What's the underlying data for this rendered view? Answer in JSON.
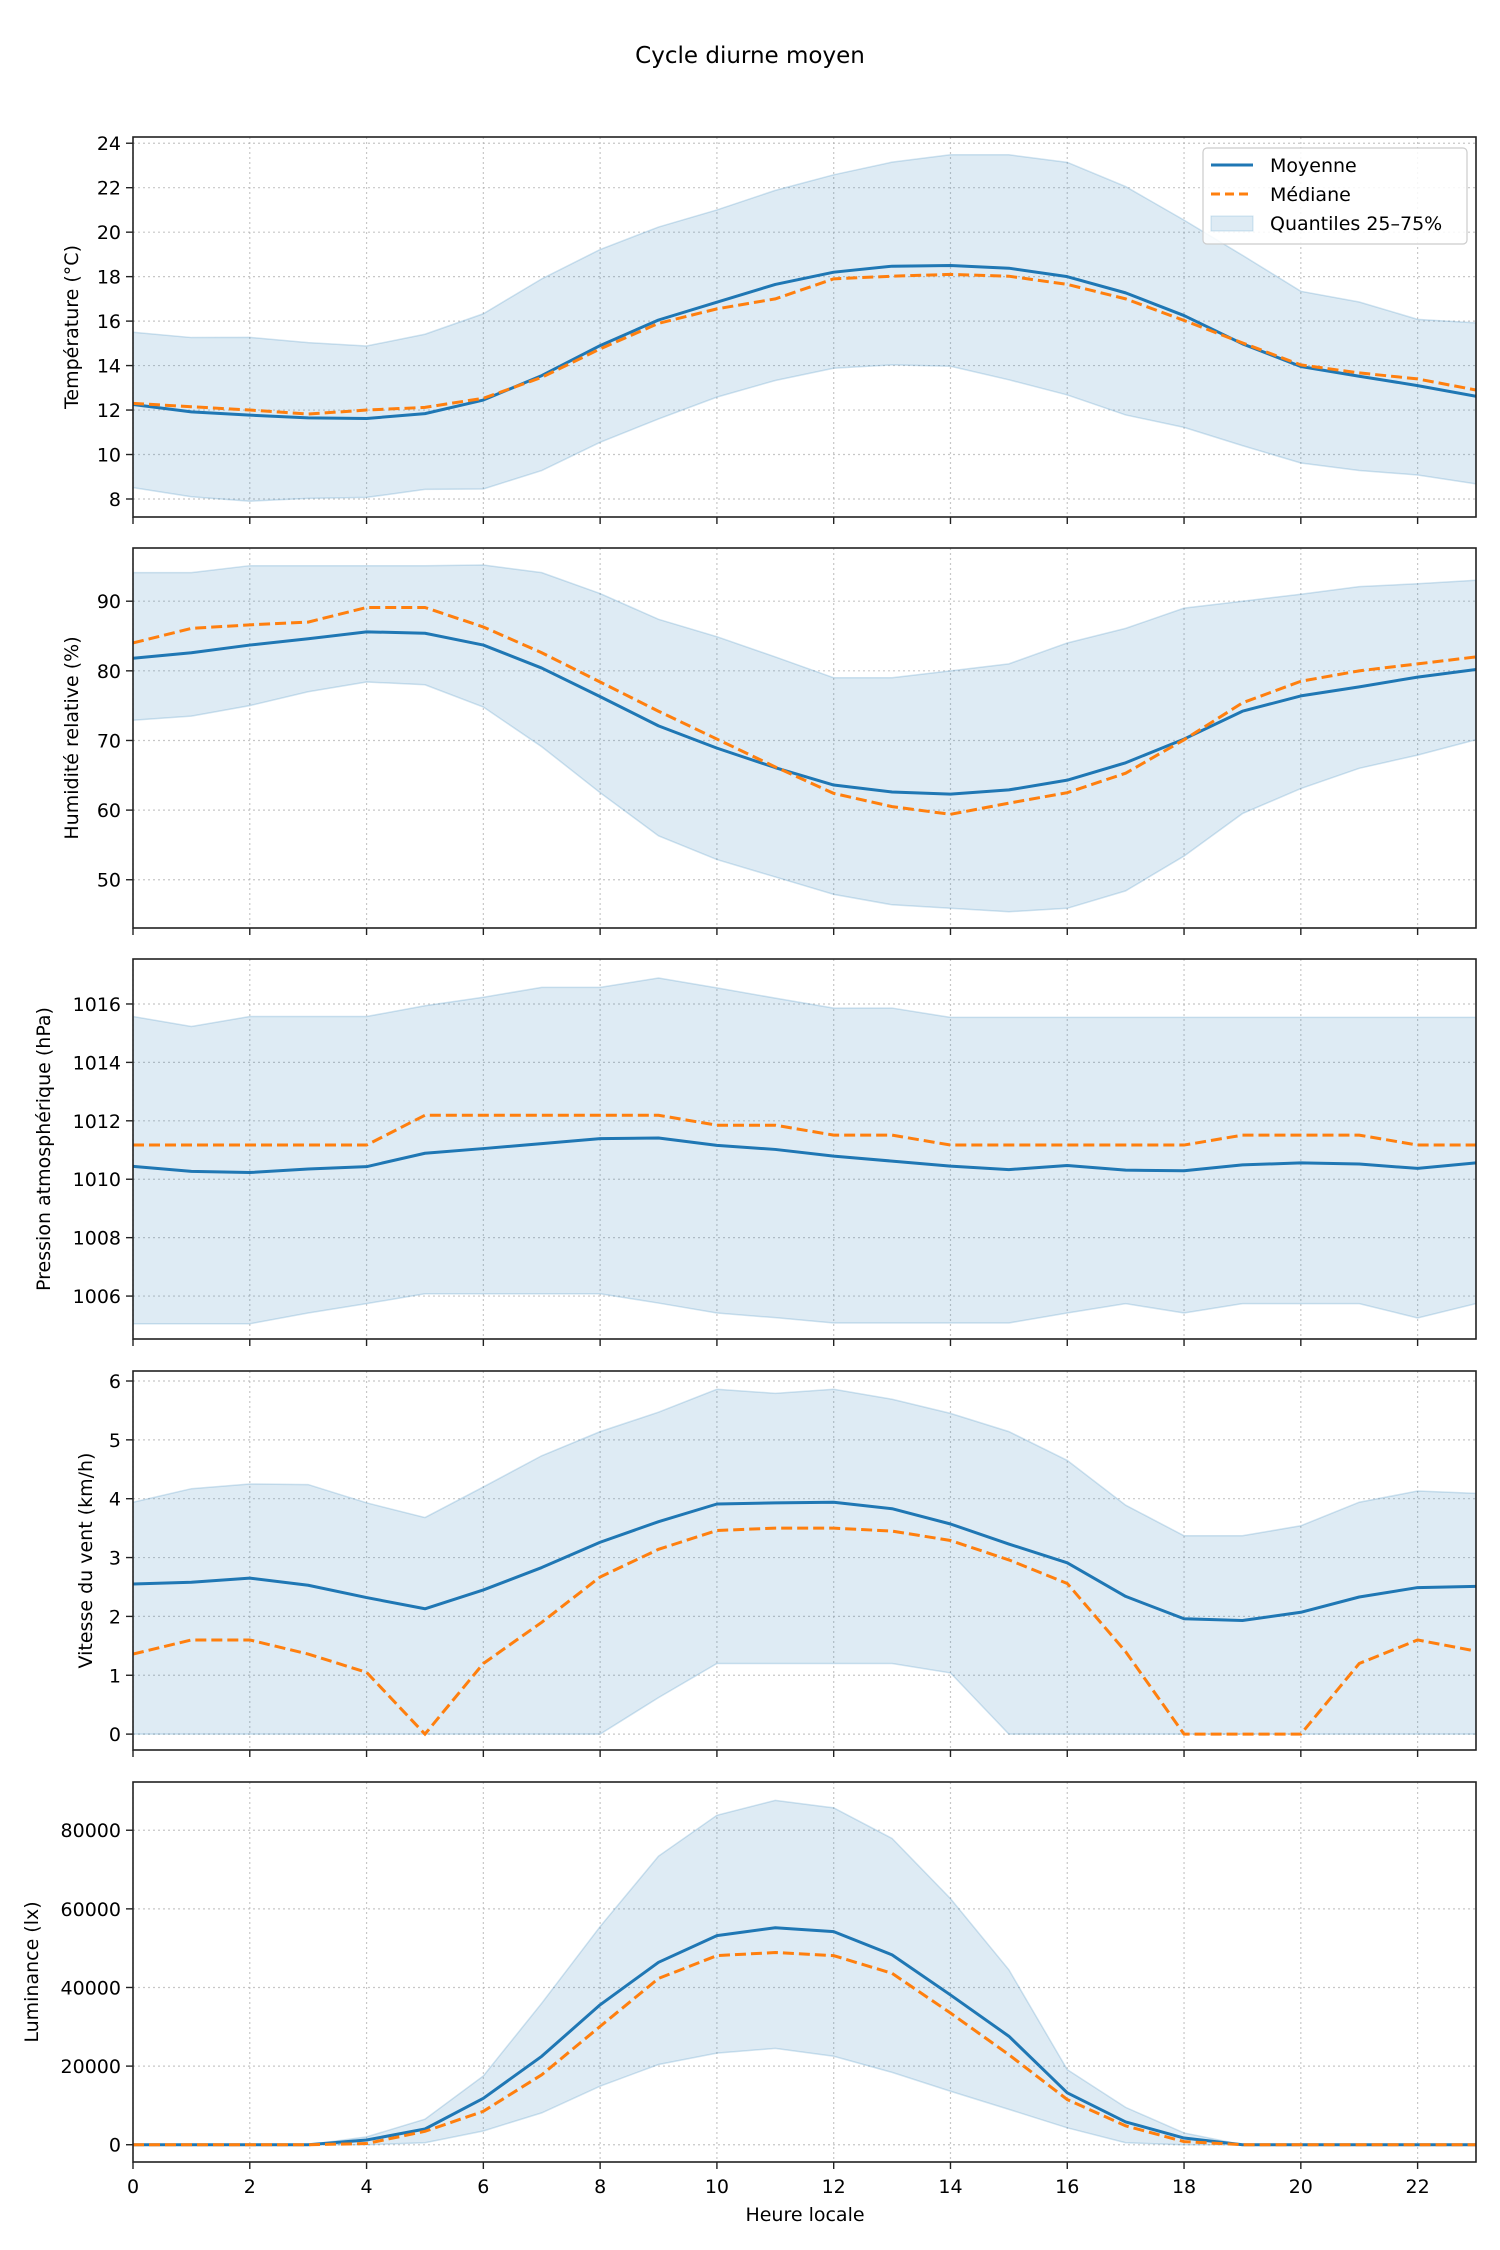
{
  "chart_data": {
    "type": "line",
    "title": "Cycle diurne moyen",
    "xlabel": "Heure locale",
    "x": [
      0,
      1,
      2,
      3,
      4,
      5,
      6,
      7,
      8,
      9,
      10,
      11,
      12,
      13,
      14,
      15,
      16,
      17,
      18,
      19,
      20,
      21,
      22,
      23
    ],
    "xlim": [
      0,
      23
    ],
    "xticks": [
      0,
      2,
      4,
      6,
      8,
      10,
      12,
      14,
      16,
      18,
      20,
      22
    ],
    "xtick_labels": [
      "0",
      "2",
      "4",
      "6",
      "8",
      "10",
      "12",
      "14",
      "16",
      "18",
      "20",
      "22"
    ],
    "grid": true,
    "legend": {
      "placement": "top-right",
      "entries": [
        "Moyenne",
        "Médiane",
        "Quantiles 25–75%"
      ]
    },
    "colors": {
      "mean": "#1f77b4",
      "median": "#ff7f0e",
      "band": "#1f77b4"
    },
    "panels": [
      {
        "ylabel": "Température (°C)",
        "ylim": [
          7.19,
          24.28
        ],
        "yticks": [
          8,
          10,
          12,
          14,
          16,
          18,
          20,
          22,
          24
        ],
        "ytick_labels": [
          "8",
          "10",
          "12",
          "14",
          "16",
          "18",
          "20",
          "22",
          "24"
        ],
        "series": [
          {
            "name": "Moyenne",
            "values": [
              12.25,
              11.92,
              11.77,
              11.65,
              11.62,
              11.84,
              12.45,
              13.55,
              14.9,
              16.05,
              16.85,
              17.65,
              18.2,
              18.47,
              18.5,
              18.38,
              18.0,
              17.27,
              16.25,
              14.98,
              13.96,
              13.52,
              13.1,
              12.62
            ]
          },
          {
            "name": "Médiane",
            "values": [
              12.3,
              12.15,
              12.0,
              11.82,
              12.0,
              12.12,
              12.53,
              13.47,
              14.75,
              15.9,
              16.55,
              17.0,
              17.9,
              18.02,
              18.1,
              18.02,
              17.65,
              17.0,
              16.03,
              15.02,
              14.03,
              13.67,
              13.4,
              12.9
            ]
          },
          {
            "name": "Quantiles 25–75%",
            "q25": [
              8.51,
              8.1,
              7.9,
              8.03,
              8.07,
              8.43,
              8.45,
              9.28,
              10.55,
              11.6,
              12.58,
              13.33,
              13.88,
              14.03,
              13.97,
              13.36,
              12.68,
              11.78,
              11.22,
              10.4,
              9.62,
              9.28,
              9.08,
              8.68
            ],
            "q75": [
              15.5,
              15.26,
              15.27,
              15.03,
              14.88,
              15.41,
              16.33,
              17.9,
              19.22,
              20.23,
              21.0,
              21.88,
              22.58,
              23.15,
              23.48,
              23.48,
              23.14,
              22.05,
              20.54,
              18.96,
              17.34,
              16.86,
              16.08,
              15.92
            ]
          }
        ]
      },
      {
        "ylabel": "Humidité relative (%)",
        "ylim": [
          43.07,
          97.64
        ],
        "yticks": [
          50,
          60,
          70,
          80,
          90
        ],
        "ytick_labels": [
          "50",
          "60",
          "70",
          "80",
          "90"
        ],
        "series": [
          {
            "name": "Moyenne",
            "values": [
              81.8,
              82.6,
              83.7,
              84.6,
              85.6,
              85.4,
              83.7,
              80.4,
              76.3,
              72.1,
              68.9,
              66.1,
              63.6,
              62.6,
              62.3,
              62.9,
              64.3,
              66.8,
              70.2,
              74.2,
              76.4,
              77.7,
              79.1,
              80.2
            ]
          },
          {
            "name": "Médiane",
            "values": [
              84.0,
              86.1,
              86.6,
              87.0,
              89.1,
              89.1,
              86.3,
              82.6,
              78.4,
              74.2,
              70.2,
              66.2,
              62.4,
              60.5,
              59.4,
              61.0,
              62.5,
              65.3,
              70.1,
              75.4,
              78.5,
              80.0,
              81.0,
              82.0
            ]
          },
          {
            "name": "Quantiles 25–75%",
            "q25": [
              72.9,
              73.5,
              75.0,
              77.0,
              78.4,
              78.0,
              74.8,
              69.1,
              62.5,
              56.3,
              52.9,
              50.4,
              47.9,
              46.4,
              45.9,
              45.4,
              45.9,
              48.4,
              53.4,
              59.5,
              63.1,
              66.0,
              67.9,
              70.1
            ],
            "q75": [
              94.1,
              94.1,
              95.1,
              95.1,
              95.1,
              95.1,
              95.2,
              94.1,
              91.1,
              87.4,
              84.9,
              82.0,
              79.0,
              79.0,
              80.0,
              81.0,
              84.0,
              86.1,
              89.0,
              90.0,
              91.0,
              92.1,
              92.5,
              93.0
            ]
          }
        ]
      },
      {
        "ylabel": "Pression atmosphérique (hPa)",
        "ylim": [
          1004.53,
          1017.54
        ],
        "yticks": [
          1006,
          1008,
          1010,
          1012,
          1014,
          1016
        ],
        "ytick_labels": [
          "1006",
          "1008",
          "1010",
          "1012",
          "1014",
          "1016"
        ],
        "series": [
          {
            "name": "Moyenne",
            "values": [
              1010.44,
              1010.27,
              1010.23,
              1010.35,
              1010.43,
              1010.89,
              1011.05,
              1011.22,
              1011.39,
              1011.41,
              1011.16,
              1011.02,
              1010.79,
              1010.62,
              1010.45,
              1010.33,
              1010.47,
              1010.31,
              1010.29,
              1010.49,
              1010.56,
              1010.52,
              1010.37,
              1010.56
            ]
          },
          {
            "name": "Médiane",
            "values": [
              1011.17,
              1011.17,
              1011.17,
              1011.17,
              1011.17,
              1012.19,
              1012.19,
              1012.19,
              1012.19,
              1012.19,
              1011.85,
              1011.85,
              1011.51,
              1011.51,
              1011.17,
              1011.17,
              1011.17,
              1011.17,
              1011.17,
              1011.51,
              1011.51,
              1011.51,
              1011.17,
              1011.17
            ]
          },
          {
            "name": "Quantiles 25–75%",
            "q25": [
              1005.05,
              1005.05,
              1005.05,
              1005.42,
              1005.74,
              1006.08,
              1006.08,
              1006.08,
              1006.08,
              1005.76,
              1005.42,
              1005.26,
              1005.08,
              1005.08,
              1005.08,
              1005.08,
              1005.42,
              1005.74,
              1005.42,
              1005.74,
              1005.74,
              1005.74,
              1005.25,
              1005.74
            ],
            "q75": [
              1015.57,
              1015.23,
              1015.57,
              1015.57,
              1015.57,
              1015.94,
              1016.23,
              1016.57,
              1016.57,
              1016.89,
              1016.55,
              1016.2,
              1015.86,
              1015.86,
              1015.54,
              1015.54,
              1015.54,
              1015.54,
              1015.54,
              1015.54,
              1015.54,
              1015.54,
              1015.54,
              1015.54
            ]
          }
        ]
      },
      {
        "ylabel": "Vitesse du vent (km/h)",
        "ylim": [
          -0.27,
          6.17
        ],
        "yticks": [
          0,
          1,
          2,
          3,
          4,
          5,
          6
        ],
        "ytick_labels": [
          "0",
          "1",
          "2",
          "3",
          "4",
          "5",
          "6"
        ],
        "series": [
          {
            "name": "Moyenne",
            "values": [
              2.55,
              2.58,
              2.65,
              2.53,
              2.32,
              2.13,
              2.45,
              2.83,
              3.26,
              3.61,
              3.91,
              3.93,
              3.94,
              3.83,
              3.57,
              3.23,
              2.91,
              2.34,
              1.96,
              1.93,
              2.07,
              2.33,
              2.49,
              2.51
            ]
          },
          {
            "name": "Médiane",
            "values": [
              1.36,
              1.6,
              1.6,
              1.36,
              1.05,
              0,
              1.2,
              1.9,
              2.67,
              3.14,
              3.46,
              3.5,
              3.5,
              3.45,
              3.29,
              2.96,
              2.56,
              1.4,
              0,
              0,
              0,
              1.2,
              1.6,
              1.41
            ]
          },
          {
            "name": "Quantiles 25–75%",
            "q25": [
              0,
              0,
              0,
              0,
              0,
              0,
              0,
              0,
              0,
              0.62,
              1.2,
              1.2,
              1.2,
              1.2,
              1.04,
              0,
              0,
              0,
              0,
              0,
              0,
              0,
              0,
              0
            ],
            "q75": [
              3.94,
              4.17,
              4.25,
              4.24,
              3.93,
              3.68,
              4.2,
              4.73,
              5.14,
              5.47,
              5.86,
              5.79,
              5.86,
              5.69,
              5.45,
              5.14,
              4.65,
              3.89,
              3.37,
              3.37,
              3.54,
              3.94,
              4.13,
              4.09
            ]
          }
        ]
      },
      {
        "ylabel": "Luminance (lx)",
        "ylim": [
          -4394,
          92270
        ],
        "yticks": [
          0,
          20000,
          40000,
          60000,
          80000
        ],
        "ytick_labels": [
          "0",
          "20000",
          "40000",
          "60000",
          "80000"
        ],
        "series": [
          {
            "name": "Moyenne",
            "values": [
              0,
              0,
              0,
              0,
              1200,
              4000,
              11800,
              22500,
              35600,
              46400,
              53200,
              55200,
              54200,
              48300,
              38100,
              27600,
              13200,
              5800,
              1700,
              0,
              0,
              0,
              0,
              0
            ]
          },
          {
            "name": "Médiane",
            "values": [
              0,
              0,
              0,
              0,
              300,
              3400,
              8500,
              17800,
              30100,
              42300,
              48100,
              48900,
              48100,
              43600,
              33500,
              22900,
              11500,
              4800,
              800,
              0,
              0,
              0,
              0,
              0
            ]
          },
          {
            "name": "Quantiles 25–75%",
            "q25": [
              0,
              0,
              0,
              0,
              0,
              500,
              3500,
              8100,
              14900,
              20400,
              23300,
              24500,
              22500,
              18400,
              13600,
              9000,
              4300,
              500,
              0,
              0,
              0,
              0,
              0,
              0
            ],
            "q75": [
              0,
              0,
              0,
              0,
              2000,
              6500,
              17500,
              36000,
              55500,
              73400,
              83800,
              87600,
              85700,
              77900,
              62600,
              44500,
              19100,
              9500,
              3000,
              0,
              0,
              0,
              0,
              0
            ]
          }
        ]
      }
    ]
  }
}
